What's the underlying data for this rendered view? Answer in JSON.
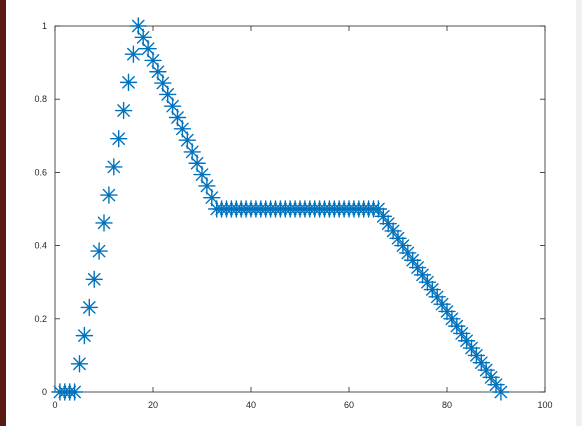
{
  "chart_data": {
    "type": "scatter",
    "title": "",
    "xlabel": "",
    "ylabel": "",
    "xlim": [
      0,
      100
    ],
    "ylim": [
      0,
      1
    ],
    "xticks": [
      0,
      20,
      40,
      60,
      80,
      100
    ],
    "yticks": [
      0,
      0.2,
      0.4,
      0.6,
      0.8,
      1
    ],
    "xtick_labels": [
      "0",
      "20",
      "40",
      "60",
      "80",
      "100"
    ],
    "ytick_labels": [
      "0",
      "0.2",
      "0.4",
      "0.6",
      "0.8",
      "1"
    ],
    "grid": false,
    "marker": "asterisk",
    "colors": {
      "series": "#0072BD",
      "axes": "#262626",
      "background": "#ffffff"
    },
    "series": [
      {
        "x": [
          1,
          2,
          3,
          4,
          5,
          6,
          7,
          8,
          9,
          10,
          11,
          12,
          13,
          14,
          15,
          16,
          17,
          18,
          19,
          20,
          21,
          22,
          23,
          24,
          25,
          26,
          27,
          28,
          29,
          30,
          31,
          32,
          33,
          34,
          35,
          36,
          37,
          38,
          39,
          40,
          41,
          42,
          43,
          44,
          45,
          46,
          47,
          48,
          49,
          50,
          51,
          52,
          53,
          54,
          55,
          56,
          57,
          58,
          59,
          60,
          61,
          62,
          63,
          64,
          65,
          66,
          67,
          68,
          69,
          70,
          71,
          72,
          73,
          74,
          75,
          76,
          77,
          78,
          79,
          80,
          81,
          82,
          83,
          84,
          85,
          86,
          87,
          88,
          89,
          90,
          91
        ],
        "y": [
          0,
          0,
          0,
          0,
          0.077,
          0.154,
          0.231,
          0.308,
          0.385,
          0.462,
          0.538,
          0.615,
          0.692,
          0.769,
          0.846,
          0.923,
          1,
          0.969,
          0.938,
          0.906,
          0.875,
          0.844,
          0.813,
          0.781,
          0.75,
          0.719,
          0.688,
          0.656,
          0.625,
          0.594,
          0.563,
          0.531,
          0.5,
          0.5,
          0.5,
          0.5,
          0.5,
          0.5,
          0.5,
          0.5,
          0.5,
          0.5,
          0.5,
          0.5,
          0.5,
          0.5,
          0.5,
          0.5,
          0.5,
          0.5,
          0.5,
          0.5,
          0.5,
          0.5,
          0.5,
          0.5,
          0.5,
          0.5,
          0.5,
          0.5,
          0.5,
          0.5,
          0.5,
          0.5,
          0.5,
          0.5,
          0.48,
          0.46,
          0.44,
          0.42,
          0.4,
          0.38,
          0.36,
          0.34,
          0.32,
          0.3,
          0.28,
          0.26,
          0.24,
          0.22,
          0.2,
          0.18,
          0.16,
          0.14,
          0.12,
          0.1,
          0.08,
          0.06,
          0.04,
          0.02,
          0
        ]
      }
    ]
  }
}
